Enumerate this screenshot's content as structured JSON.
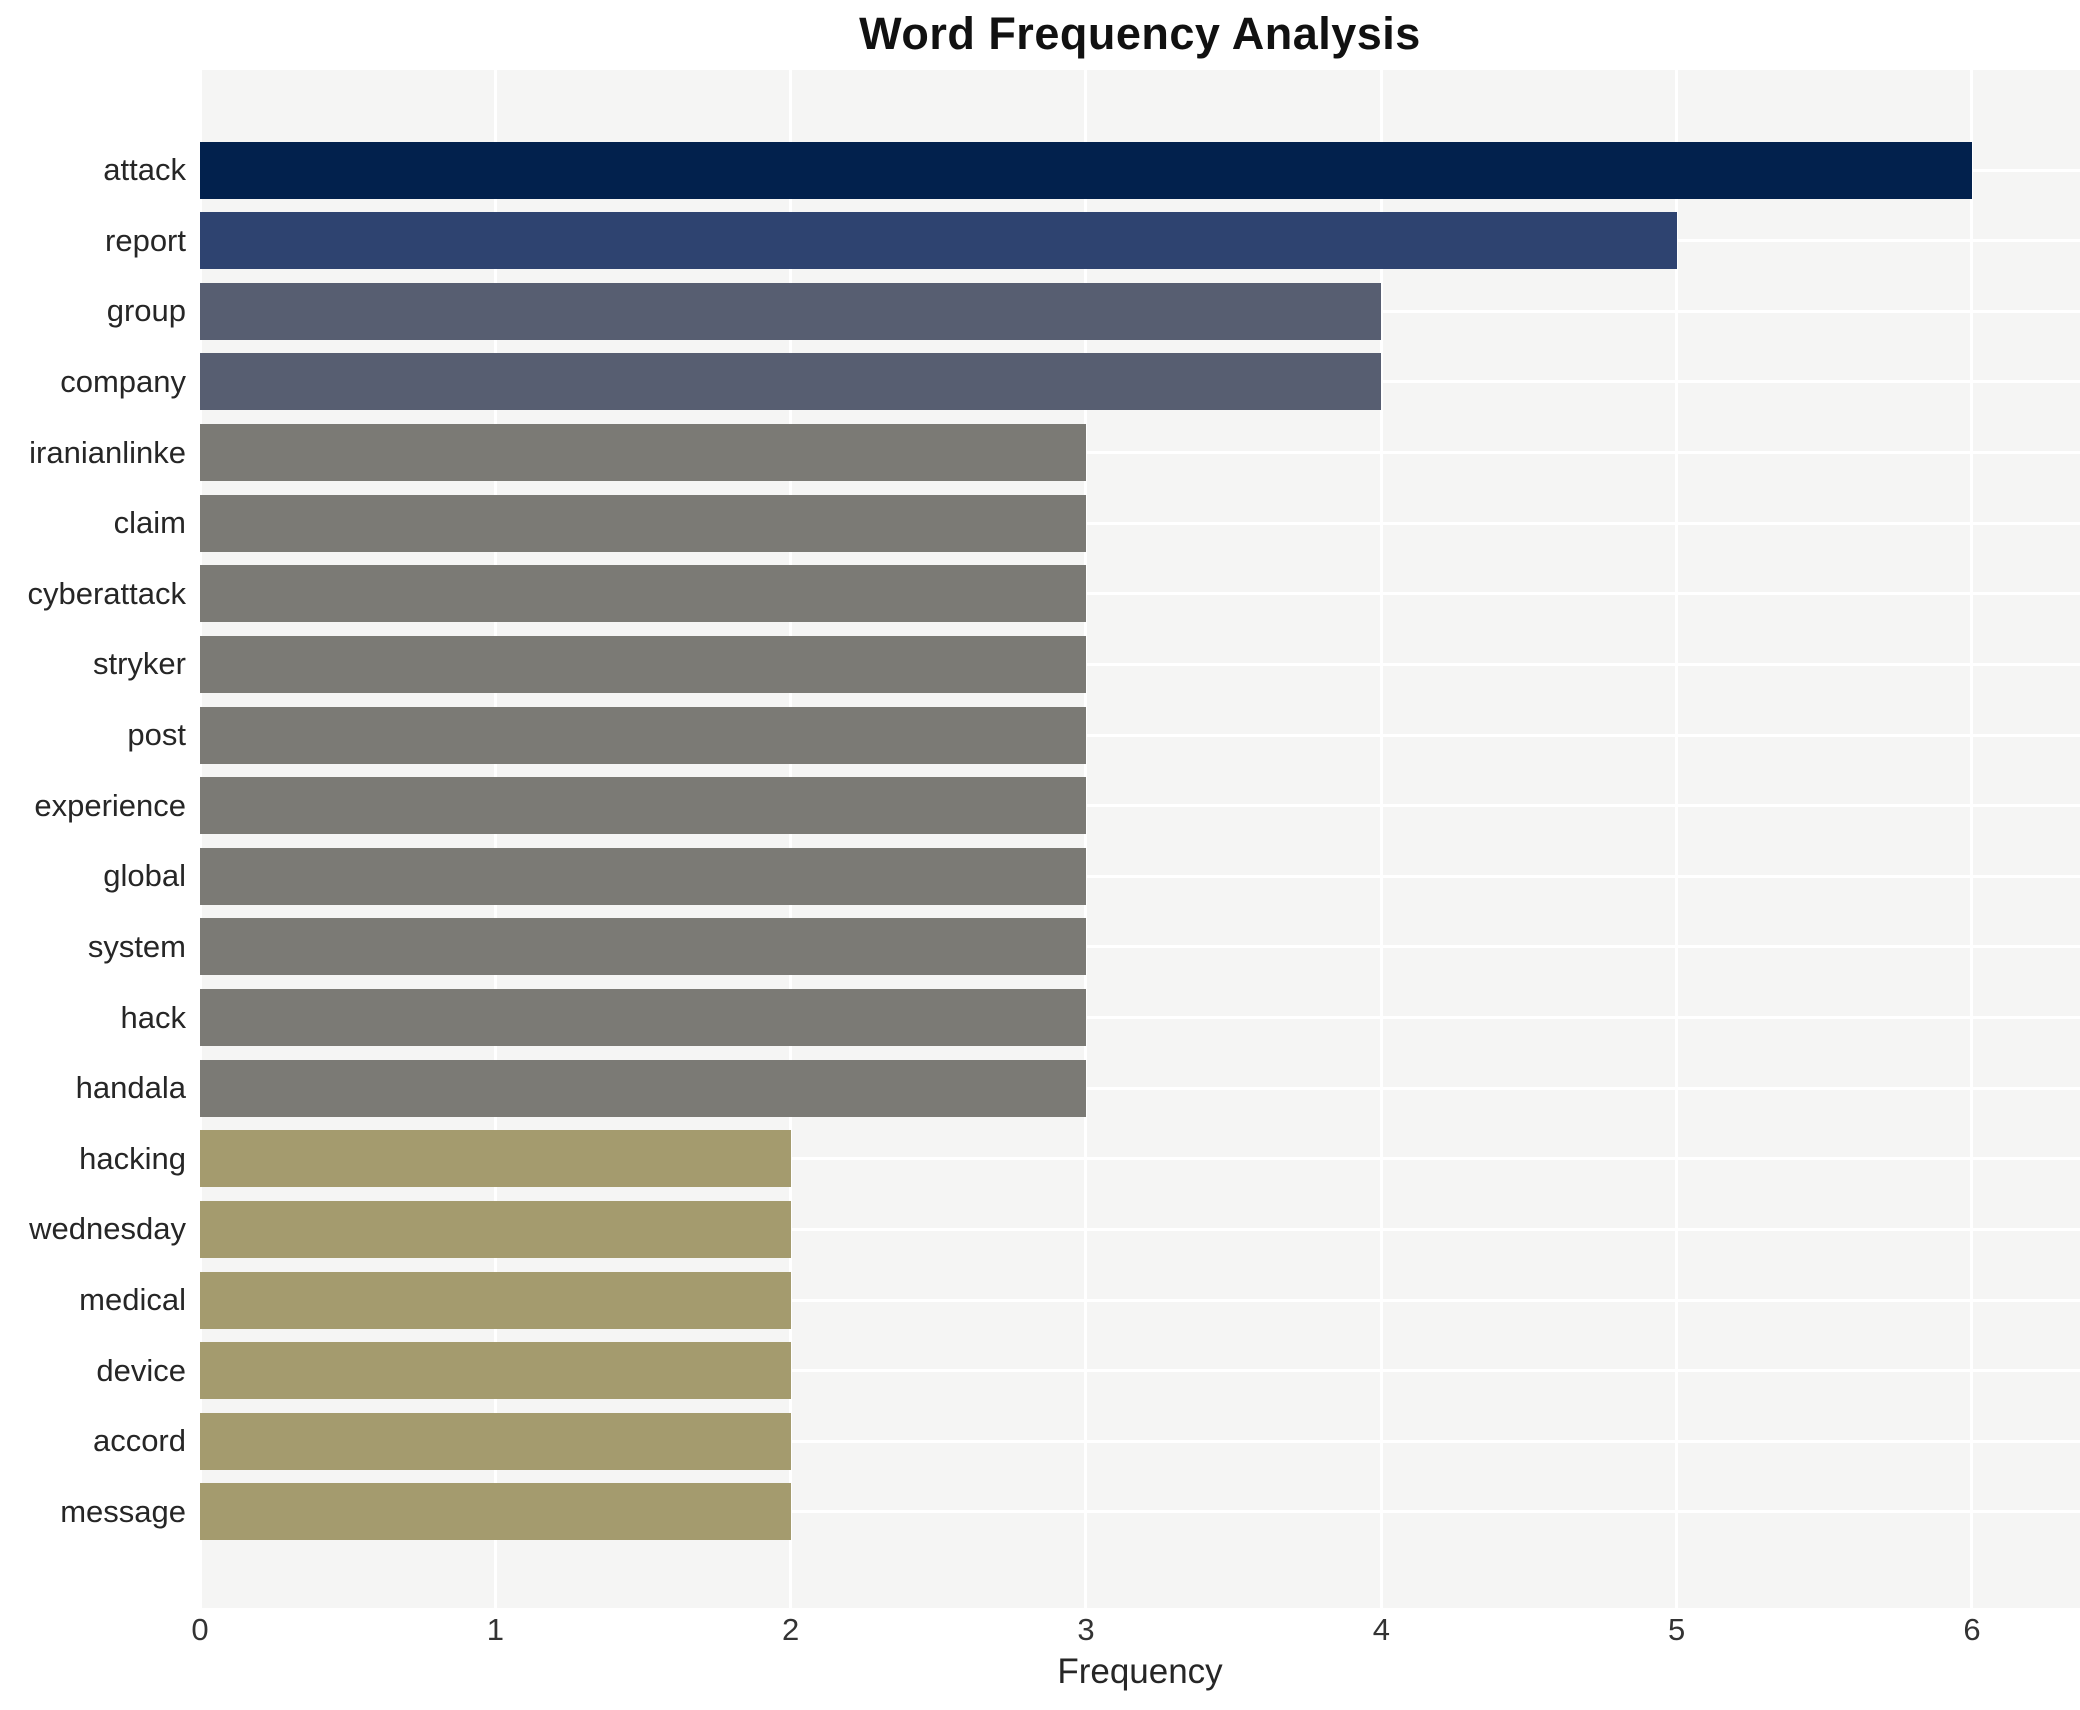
{
  "chart_data": {
    "type": "bar",
    "orientation": "horizontal",
    "title": "Word Frequency Analysis",
    "xlabel": "Frequency",
    "ylabel": "",
    "categories": [
      "attack",
      "report",
      "group",
      "company",
      "iranianlinke",
      "claim",
      "cyberattack",
      "stryker",
      "post",
      "experience",
      "global",
      "system",
      "hack",
      "handala",
      "hacking",
      "wednesday",
      "medical",
      "device",
      "accord",
      "message"
    ],
    "values": [
      6,
      5,
      4,
      4,
      3,
      3,
      3,
      3,
      3,
      3,
      3,
      3,
      3,
      3,
      2,
      2,
      2,
      2,
      2,
      2
    ],
    "bar_colors": [
      "#02214d",
      "#2e4370",
      "#575e71",
      "#575e71",
      "#7b7a75",
      "#7b7a75",
      "#7b7a75",
      "#7b7a75",
      "#7b7a75",
      "#7b7a75",
      "#7b7a75",
      "#7b7a75",
      "#7b7a75",
      "#7b7a75",
      "#a49b6e",
      "#a49b6e",
      "#a49b6e",
      "#a49b6e",
      "#a49b6e",
      "#a49b6e"
    ],
    "xticks": [
      0,
      1,
      2,
      3,
      4,
      5,
      6
    ],
    "xlim": [
      0,
      6.37
    ],
    "grid": true,
    "legend": false,
    "plot_background": "#f5f5f4",
    "grid_color": "#ffffff",
    "title_color": "#111111",
    "tick_color": "#333333"
  }
}
